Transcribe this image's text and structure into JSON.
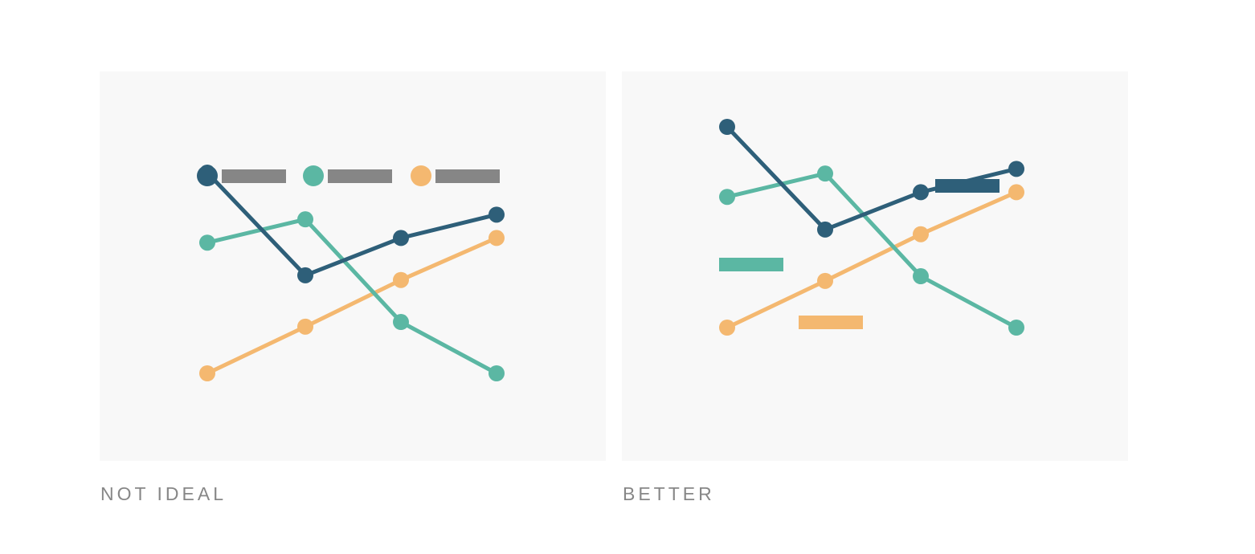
{
  "colors": {
    "series_a": "#2e5f79",
    "series_b": "#5bb7a3",
    "series_c": "#f4b870",
    "placeholder_label": "#868686",
    "panel_background": "#f8f8f8",
    "caption_text": "#878787"
  },
  "captions": {
    "left": "NOT IDEAL",
    "right": "BETTER"
  },
  "chart_data": [
    {
      "type": "line",
      "title": "",
      "xlabel": "",
      "ylabel": "",
      "x": [
        1,
        2,
        3,
        4
      ],
      "ylim": [
        0,
        10
      ],
      "grid": false,
      "axes_visible": false,
      "legend_placement": "top",
      "label_style": "legend",
      "series": [
        {
          "color_key": "series_a",
          "values": [
            8.0,
            5.8,
            6.6,
            7.1
          ]
        },
        {
          "color_key": "series_b",
          "values": [
            6.5,
            7.0,
            4.8,
            3.7
          ]
        },
        {
          "color_key": "series_c",
          "values": [
            3.7,
            4.7,
            5.7,
            6.6
          ]
        }
      ],
      "legend_entries": [
        {
          "marker_color_key": "series_a",
          "label_color_key": "placeholder_label"
        },
        {
          "marker_color_key": "series_b",
          "label_color_key": "placeholder_label"
        },
        {
          "marker_color_key": "series_c",
          "label_color_key": "placeholder_label"
        }
      ]
    },
    {
      "type": "line",
      "title": "",
      "xlabel": "",
      "ylabel": "",
      "x": [
        1,
        2,
        3,
        4
      ],
      "ylim": [
        0,
        10
      ],
      "grid": false,
      "axes_visible": false,
      "legend_placement": "none",
      "label_style": "direct",
      "series": [
        {
          "color_key": "series_a",
          "values": [
            8.0,
            5.8,
            6.6,
            7.1
          ]
        },
        {
          "color_key": "series_b",
          "values": [
            6.5,
            7.0,
            4.8,
            3.7
          ]
        },
        {
          "color_key": "series_c",
          "values": [
            3.7,
            4.7,
            5.7,
            6.6
          ]
        }
      ],
      "direct_labels": [
        {
          "color_key": "series_a",
          "near": "end, above"
        },
        {
          "color_key": "series_b",
          "near": "start, below"
        },
        {
          "color_key": "series_c",
          "near": "start, below-right"
        }
      ]
    }
  ]
}
